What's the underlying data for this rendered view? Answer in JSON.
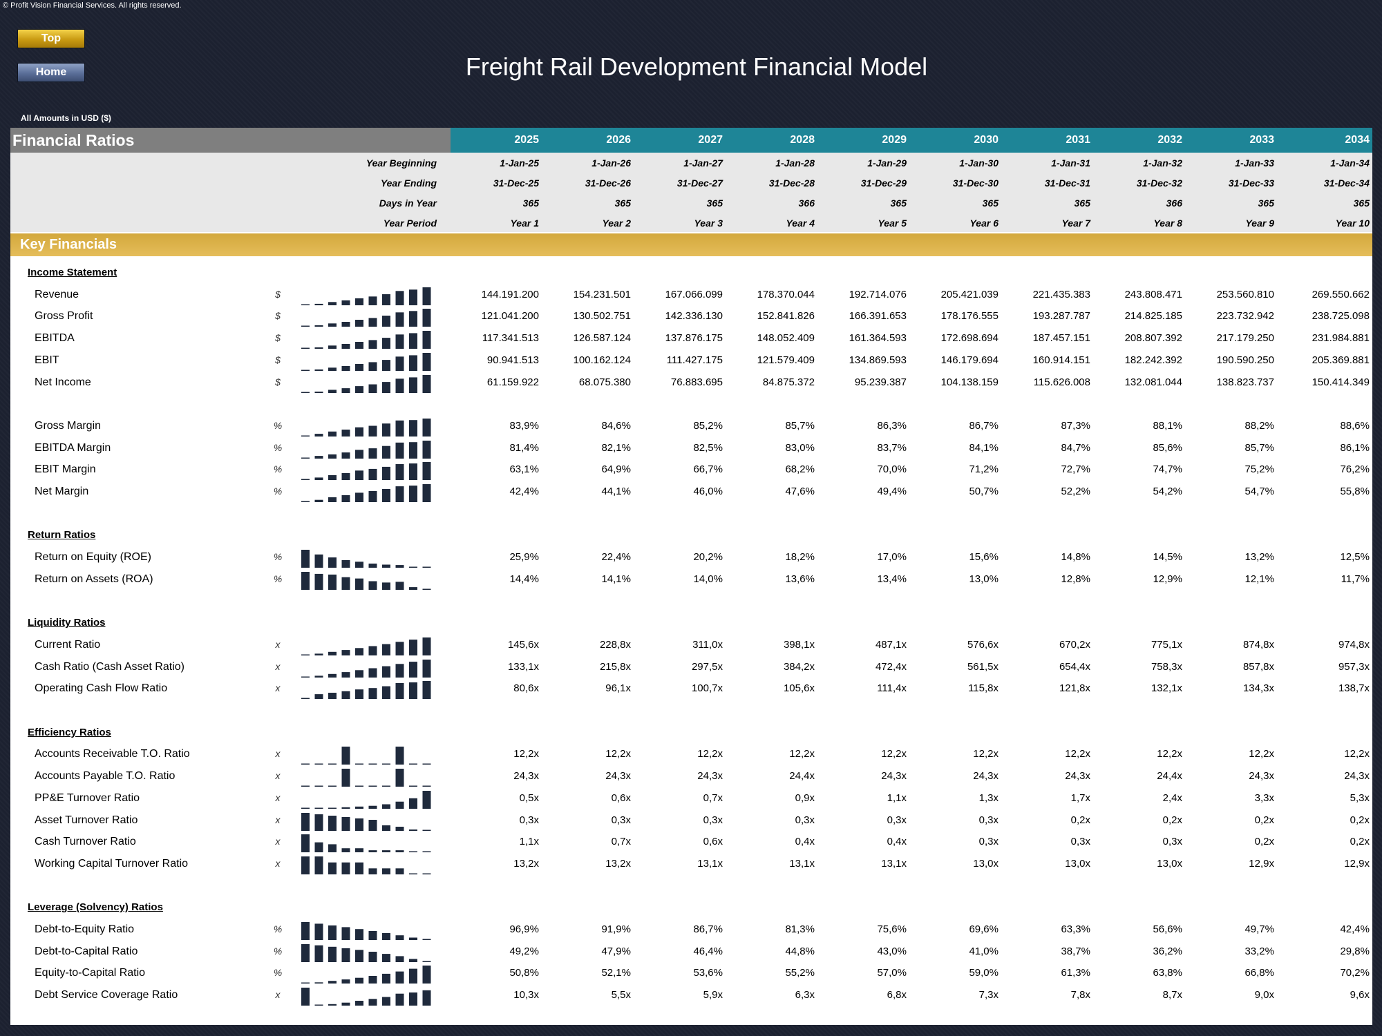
{
  "copyright": "© Profit Vision Financial Services. All rights reserved.",
  "buttons": {
    "top": "Top",
    "home": "Home"
  },
  "title": "Freight Rail Development Financial Model",
  "currency_note": "All Amounts in  USD ($)",
  "sheet_title": "Financial Ratios",
  "years": [
    "2025",
    "2026",
    "2027",
    "2028",
    "2029",
    "2030",
    "2031",
    "2032",
    "2033",
    "2034"
  ],
  "meta": [
    {
      "label": "Year Beginning",
      "values": [
        "1-Jan-25",
        "1-Jan-26",
        "1-Jan-27",
        "1-Jan-28",
        "1-Jan-29",
        "1-Jan-30",
        "1-Jan-31",
        "1-Jan-32",
        "1-Jan-33",
        "1-Jan-34"
      ]
    },
    {
      "label": "Year Ending",
      "values": [
        "31-Dec-25",
        "31-Dec-26",
        "31-Dec-27",
        "31-Dec-28",
        "31-Dec-29",
        "31-Dec-30",
        "31-Dec-31",
        "31-Dec-32",
        "31-Dec-33",
        "31-Dec-34"
      ]
    },
    {
      "label": "Days in Year",
      "values": [
        "365",
        "365",
        "365",
        "366",
        "365",
        "365",
        "365",
        "366",
        "365",
        "365"
      ]
    },
    {
      "label": "Year Period",
      "values": [
        "Year 1",
        "Year 2",
        "Year 3",
        "Year 4",
        "Year 5",
        "Year 6",
        "Year 7",
        "Year 8",
        "Year 9",
        "Year 10"
      ]
    }
  ],
  "key_band": "Key Financials",
  "sections": [
    {
      "title": "Income Statement",
      "rows": [
        {
          "label": "Revenue",
          "unit": "$",
          "values": [
            "144.191.200",
            "154.231.501",
            "167.066.099",
            "178.370.044",
            "192.714.076",
            "205.421.039",
            "221.435.383",
            "243.808.471",
            "253.560.810",
            "269.550.662"
          ],
          "spark": [
            144.19,
            154.23,
            167.07,
            178.37,
            192.71,
            205.42,
            221.44,
            243.81,
            253.56,
            269.55
          ]
        },
        {
          "label": "Gross Profit",
          "unit": "$",
          "values": [
            "121.041.200",
            "130.502.751",
            "142.336.130",
            "152.841.826",
            "166.391.653",
            "178.176.555",
            "193.287.787",
            "214.825.185",
            "223.732.942",
            "238.725.098"
          ],
          "spark": [
            121.04,
            130.5,
            142.34,
            152.84,
            166.39,
            178.18,
            193.29,
            214.83,
            223.73,
            238.73
          ]
        },
        {
          "label": "EBITDA",
          "unit": "$",
          "values": [
            "117.341.513",
            "126.587.124",
            "137.876.175",
            "148.052.409",
            "161.364.593",
            "172.698.694",
            "187.457.151",
            "208.807.392",
            "217.179.250",
            "231.984.881"
          ],
          "spark": [
            117.34,
            126.59,
            137.88,
            148.05,
            161.36,
            172.7,
            187.46,
            208.81,
            217.18,
            231.98
          ]
        },
        {
          "label": "EBIT",
          "unit": "$",
          "values": [
            "90.941.513",
            "100.162.124",
            "111.427.175",
            "121.579.409",
            "134.869.593",
            "146.179.694",
            "160.914.151",
            "182.242.392",
            "190.590.250",
            "205.369.881"
          ],
          "spark": [
            90.94,
            100.16,
            111.43,
            121.58,
            134.87,
            146.18,
            160.91,
            182.24,
            190.59,
            205.37
          ]
        },
        {
          "label": "Net Income",
          "unit": "$",
          "values": [
            "61.159.922",
            "68.075.380",
            "76.883.695",
            "84.875.372",
            "95.239.387",
            "104.138.159",
            "115.626.008",
            "132.081.044",
            "138.823.737",
            "150.414.349"
          ],
          "spark": [
            61.16,
            68.08,
            76.88,
            84.88,
            95.24,
            104.14,
            115.63,
            132.08,
            138.82,
            150.41
          ]
        },
        {
          "spacer": true
        },
        {
          "label": "Gross Margin",
          "unit": "%",
          "values": [
            "83,9%",
            "84,6%",
            "85,2%",
            "85,7%",
            "86,3%",
            "86,7%",
            "87,3%",
            "88,1%",
            "88,2%",
            "88,6%"
          ],
          "spark": [
            83.9,
            84.6,
            85.2,
            85.7,
            86.3,
            86.7,
            87.3,
            88.1,
            88.2,
            88.6
          ]
        },
        {
          "label": "EBITDA Margin",
          "unit": "%",
          "values": [
            "81,4%",
            "82,1%",
            "82,5%",
            "83,0%",
            "83,7%",
            "84,1%",
            "84,7%",
            "85,6%",
            "85,7%",
            "86,1%"
          ],
          "spark": [
            81.4,
            82.1,
            82.5,
            83.0,
            83.7,
            84.1,
            84.7,
            85.6,
            85.7,
            86.1
          ]
        },
        {
          "label": "EBIT Margin",
          "unit": "%",
          "values": [
            "63,1%",
            "64,9%",
            "66,7%",
            "68,2%",
            "70,0%",
            "71,2%",
            "72,7%",
            "74,7%",
            "75,2%",
            "76,2%"
          ],
          "spark": [
            63.1,
            64.9,
            66.7,
            68.2,
            70.0,
            71.2,
            72.7,
            74.7,
            75.2,
            76.2
          ]
        },
        {
          "label": "Net Margin",
          "unit": "%",
          "values": [
            "42,4%",
            "44,1%",
            "46,0%",
            "47,6%",
            "49,4%",
            "50,7%",
            "52,2%",
            "54,2%",
            "54,7%",
            "55,8%"
          ],
          "spark": [
            42.4,
            44.1,
            46.0,
            47.6,
            49.4,
            50.7,
            52.2,
            54.2,
            54.7,
            55.8
          ]
        }
      ]
    },
    {
      "title": "Return Ratios",
      "rows": [
        {
          "label": "Return on Equity (ROE)",
          "unit": "%",
          "values": [
            "25,9%",
            "22,4%",
            "20,2%",
            "18,2%",
            "17,0%",
            "15,6%",
            "14,8%",
            "14,5%",
            "13,2%",
            "12,5%"
          ],
          "spark": [
            25.9,
            22.4,
            20.2,
            18.2,
            17.0,
            15.6,
            14.8,
            14.5,
            13.2,
            12.5
          ]
        },
        {
          "label": "Return on Assets (ROA)",
          "unit": "%",
          "values": [
            "14,4%",
            "14,1%",
            "14,0%",
            "13,6%",
            "13,4%",
            "13,0%",
            "12,8%",
            "12,9%",
            "12,1%",
            "11,7%"
          ],
          "spark": [
            14.4,
            14.1,
            14.0,
            13.6,
            13.4,
            13.0,
            12.8,
            12.9,
            12.1,
            11.7
          ]
        }
      ]
    },
    {
      "title": "Liquidity Ratios",
      "rows": [
        {
          "label": "Current Ratio",
          "unit": "x",
          "values": [
            "145,6x",
            "228,8x",
            "311,0x",
            "398,1x",
            "487,1x",
            "576,6x",
            "670,2x",
            "775,1x",
            "874,8x",
            "974,8x"
          ],
          "spark": [
            145.6,
            228.8,
            311.0,
            398.1,
            487.1,
            576.6,
            670.2,
            775.1,
            874.8,
            974.8
          ]
        },
        {
          "label": "Cash Ratio (Cash Asset Ratio)",
          "unit": "x",
          "values": [
            "133,1x",
            "215,8x",
            "297,5x",
            "384,2x",
            "472,4x",
            "561,5x",
            "654,4x",
            "758,3x",
            "857,8x",
            "957,3x"
          ],
          "spark": [
            133.1,
            215.8,
            297.5,
            384.2,
            472.4,
            561.5,
            654.4,
            758.3,
            857.8,
            957.3
          ]
        },
        {
          "label": "Operating Cash Flow Ratio",
          "unit": "x",
          "values": [
            "80,6x",
            "96,1x",
            "100,7x",
            "105,6x",
            "111,4x",
            "115,8x",
            "121,8x",
            "132,1x",
            "134,3x",
            "138,7x"
          ],
          "spark": [
            80.6,
            96.1,
            100.7,
            105.6,
            111.4,
            115.8,
            121.8,
            132.1,
            134.3,
            138.7
          ]
        }
      ]
    },
    {
      "title": "Efficiency Ratios",
      "rows": [
        {
          "label": "Accounts Receivable T.O. Ratio",
          "unit": "x",
          "values": [
            "12,2x",
            "12,2x",
            "12,2x",
            "12,2x",
            "12,2x",
            "12,2x",
            "12,2x",
            "12,2x",
            "12,2x",
            "12,2x"
          ],
          "spark": [
            12.17,
            12.17,
            12.17,
            12.2,
            12.17,
            12.17,
            12.17,
            12.2,
            12.17,
            12.17
          ]
        },
        {
          "label": "Accounts Payable T.O. Ratio",
          "unit": "x",
          "values": [
            "24,3x",
            "24,3x",
            "24,3x",
            "24,4x",
            "24,3x",
            "24,3x",
            "24,3x",
            "24,4x",
            "24,3x",
            "24,3x"
          ],
          "spark": [
            24.33,
            24.33,
            24.33,
            24.4,
            24.33,
            24.33,
            24.33,
            24.4,
            24.33,
            24.33
          ]
        },
        {
          "label": "PP&E Turnover Ratio",
          "unit": "x",
          "values": [
            "0,5x",
            "0,6x",
            "0,7x",
            "0,9x",
            "1,1x",
            "1,3x",
            "1,7x",
            "2,4x",
            "3,3x",
            "5,3x"
          ],
          "spark": [
            0.5,
            0.6,
            0.7,
            0.9,
            1.1,
            1.3,
            1.7,
            2.4,
            3.3,
            5.3
          ]
        },
        {
          "label": "Asset Turnover Ratio",
          "unit": "x",
          "values": [
            "0,3x",
            "0,3x",
            "0,3x",
            "0,3x",
            "0,3x",
            "0,3x",
            "0,2x",
            "0,2x",
            "0,2x",
            "0,2x"
          ],
          "spark": [
            0.34,
            0.33,
            0.32,
            0.31,
            0.3,
            0.29,
            0.25,
            0.24,
            0.22,
            0.21
          ]
        },
        {
          "label": "Cash Turnover Ratio",
          "unit": "x",
          "values": [
            "1,1x",
            "0,7x",
            "0,6x",
            "0,4x",
            "0,4x",
            "0,3x",
            "0,3x",
            "0,3x",
            "0,2x",
            "0,2x"
          ],
          "spark": [
            1.1,
            0.7,
            0.6,
            0.4,
            0.4,
            0.3,
            0.3,
            0.3,
            0.2,
            0.2
          ]
        },
        {
          "label": "Working Capital Turnover Ratio",
          "unit": "x",
          "values": [
            "13,2x",
            "13,2x",
            "13,1x",
            "13,1x",
            "13,1x",
            "13,0x",
            "13,0x",
            "13,0x",
            "12,9x",
            "12,9x"
          ],
          "spark": [
            13.2,
            13.2,
            13.1,
            13.1,
            13.1,
            13.0,
            13.0,
            13.0,
            12.9,
            12.9
          ]
        }
      ]
    },
    {
      "title": "Leverage (Solvency) Ratios",
      "rows": [
        {
          "label": "Debt-to-Equity Ratio",
          "unit": "%",
          "values": [
            "96,9%",
            "91,9%",
            "86,7%",
            "81,3%",
            "75,6%",
            "69,6%",
            "63,3%",
            "56,6%",
            "49,7%",
            "42,4%"
          ],
          "spark": [
            96.9,
            91.9,
            86.7,
            81.3,
            75.6,
            69.6,
            63.3,
            56.6,
            49.7,
            42.4
          ]
        },
        {
          "label": "Debt-to-Capital Ratio",
          "unit": "%",
          "values": [
            "49,2%",
            "47,9%",
            "46,4%",
            "44,8%",
            "43,0%",
            "41,0%",
            "38,7%",
            "36,2%",
            "33,2%",
            "29,8%"
          ],
          "spark": [
            49.2,
            47.9,
            46.4,
            44.8,
            43.0,
            41.0,
            38.7,
            36.2,
            33.2,
            29.8
          ]
        },
        {
          "label": "Equity-to-Capital Ratio",
          "unit": "%",
          "values": [
            "50,8%",
            "52,1%",
            "53,6%",
            "55,2%",
            "57,0%",
            "59,0%",
            "61,3%",
            "63,8%",
            "66,8%",
            "70,2%"
          ],
          "spark": [
            50.8,
            52.1,
            53.6,
            55.2,
            57.0,
            59.0,
            61.3,
            63.8,
            66.8,
            70.2
          ]
        },
        {
          "label": "Debt Service Coverage Ratio",
          "unit": "x",
          "values": [
            "10,3x",
            "5,5x",
            "5,9x",
            "6,3x",
            "6,8x",
            "7,3x",
            "7,8x",
            "8,7x",
            "9,0x",
            "9,6x"
          ],
          "spark": [
            10.3,
            5.5,
            5.9,
            6.3,
            6.8,
            7.3,
            7.8,
            8.7,
            9.0,
            9.6
          ]
        }
      ]
    }
  ]
}
